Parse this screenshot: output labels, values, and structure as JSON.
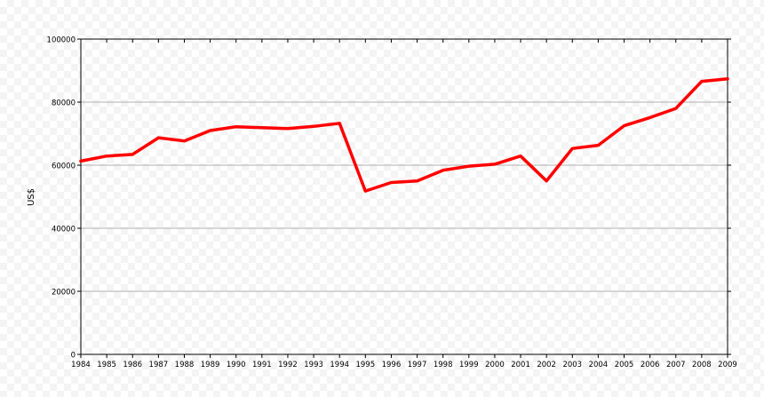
{
  "chart_data": {
    "type": "line",
    "title": "",
    "xlabel": "",
    "ylabel": "US$",
    "ylim": [
      0,
      100000
    ],
    "yticks": [
      0,
      20000,
      40000,
      60000,
      80000,
      100000
    ],
    "grid": true,
    "x": [
      1984,
      1985,
      1986,
      1987,
      1988,
      1989,
      1990,
      1991,
      1992,
      1993,
      1994,
      1995,
      1996,
      1997,
      1998,
      1999,
      2000,
      2001,
      2002,
      2003,
      2004,
      2005,
      2006,
      2007,
      2008,
      2009
    ],
    "series": [
      {
        "name": "",
        "color": "#ff0000",
        "values": [
          61300,
          62900,
          63400,
          68700,
          67700,
          71000,
          72200,
          71900,
          71600,
          72300,
          73300,
          51800,
          54500,
          55000,
          58400,
          59700,
          60300,
          62900,
          55000,
          65300,
          66300,
          72500,
          75100,
          78000,
          86600,
          87400
        ]
      }
    ]
  }
}
